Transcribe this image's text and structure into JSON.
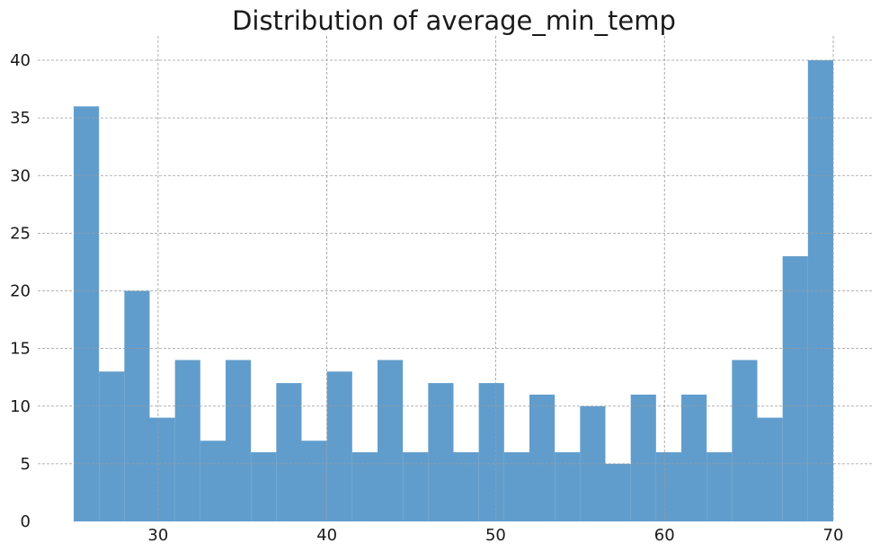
{
  "chart_data": {
    "type": "bar",
    "title": "Distribution of average_min_temp",
    "xlabel": "",
    "ylabel": "",
    "xlim": [
      25,
      70
    ],
    "ylim": [
      0,
      42
    ],
    "x_ticks": [
      30,
      40,
      50,
      60,
      70
    ],
    "y_ticks": [
      0,
      5,
      10,
      15,
      20,
      25,
      30,
      35,
      40
    ],
    "bin_edges": [
      25.0,
      26.5,
      28.0,
      29.5,
      31.0,
      32.5,
      34.0,
      35.5,
      37.0,
      38.5,
      40.0,
      41.5,
      43.0,
      44.5,
      46.0,
      47.5,
      49.0,
      50.5,
      52.0,
      53.5,
      55.0,
      56.5,
      58.0,
      59.5,
      61.0,
      62.5,
      64.0,
      65.5,
      67.0,
      68.5,
      70.0
    ],
    "counts": [
      36,
      13,
      20,
      9,
      14,
      7,
      14,
      6,
      12,
      7,
      13,
      6,
      14,
      6,
      12,
      6,
      12,
      6,
      11,
      6,
      10,
      5,
      11,
      6,
      11,
      6,
      14,
      9,
      23,
      40
    ],
    "grid": true,
    "color": "#4a8fc4"
  }
}
